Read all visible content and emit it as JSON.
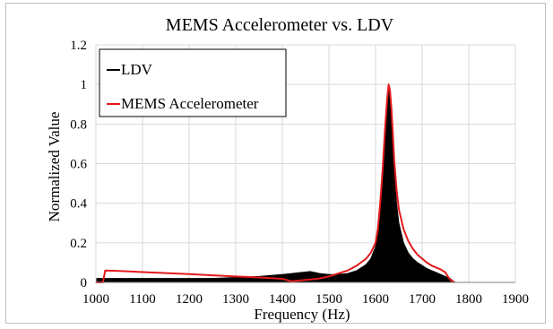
{
  "chart_data": {
    "type": "line",
    "title": "MEMS Accelerometer vs. LDV",
    "xlabel": "Frequency (Hz)",
    "ylabel": "Normalized Value",
    "xlim": [
      1000,
      1900
    ],
    "ylim": [
      0,
      1.2
    ],
    "x_ticks": [
      "1000",
      "1100",
      "1200",
      "1300",
      "1400",
      "1500",
      "1600",
      "1700",
      "1800",
      "1900"
    ],
    "y_ticks": [
      "0",
      "0.2",
      "0.4",
      "0.6",
      "0.8",
      "1",
      "1.2"
    ],
    "grid": true,
    "legend_position": "top-left",
    "series": [
      {
        "name": "LDV",
        "color": "#000000",
        "style": "dense-fill",
        "x": [
          1000,
          1050,
          1100,
          1150,
          1200,
          1250,
          1300,
          1350,
          1400,
          1420,
          1440,
          1460,
          1480,
          1500,
          1520,
          1540,
          1560,
          1580,
          1590,
          1600,
          1605,
          1610,
          1615,
          1620,
          1625,
          1628,
          1631,
          1634,
          1637,
          1640,
          1645,
          1650,
          1660,
          1670,
          1680,
          1690,
          1700,
          1710,
          1720,
          1730,
          1740,
          1750,
          1760,
          1770
        ],
        "y": [
          0.02,
          0.02,
          0.02,
          0.02,
          0.02,
          0.02,
          0.025,
          0.03,
          0.04,
          0.045,
          0.05,
          0.055,
          0.045,
          0.04,
          0.04,
          0.045,
          0.06,
          0.09,
          0.12,
          0.18,
          0.25,
          0.36,
          0.52,
          0.74,
          0.9,
          1.0,
          0.98,
          0.88,
          0.74,
          0.56,
          0.4,
          0.3,
          0.2,
          0.15,
          0.12,
          0.1,
          0.085,
          0.07,
          0.06,
          0.05,
          0.04,
          0.03,
          0.02,
          0.0
        ]
      },
      {
        "name": "MEMS Accelerometer",
        "color": "#e31a1c",
        "style": "line",
        "x": [
          1000,
          1015,
          1020,
          1050,
          1100,
          1150,
          1200,
          1250,
          1300,
          1350,
          1400,
          1420,
          1440,
          1460,
          1480,
          1500,
          1520,
          1540,
          1560,
          1580,
          1590,
          1600,
          1605,
          1610,
          1615,
          1620,
          1625,
          1628,
          1631,
          1634,
          1637,
          1640,
          1645,
          1650,
          1660,
          1670,
          1680,
          1690,
          1700,
          1710,
          1720,
          1730,
          1740,
          1750,
          1755,
          1760,
          1765,
          1770
        ],
        "y": [
          0.0,
          0.0,
          0.06,
          0.058,
          0.052,
          0.047,
          0.042,
          0.036,
          0.03,
          0.025,
          0.018,
          0.005,
          0.01,
          0.015,
          0.02,
          0.03,
          0.045,
          0.06,
          0.085,
          0.12,
          0.15,
          0.2,
          0.27,
          0.4,
          0.56,
          0.76,
          0.93,
          1.0,
          0.97,
          0.88,
          0.76,
          0.62,
          0.47,
          0.37,
          0.27,
          0.21,
          0.17,
          0.14,
          0.12,
          0.1,
          0.085,
          0.075,
          0.065,
          0.05,
          0.03,
          0.015,
          0.005,
          0.0
        ]
      }
    ]
  }
}
